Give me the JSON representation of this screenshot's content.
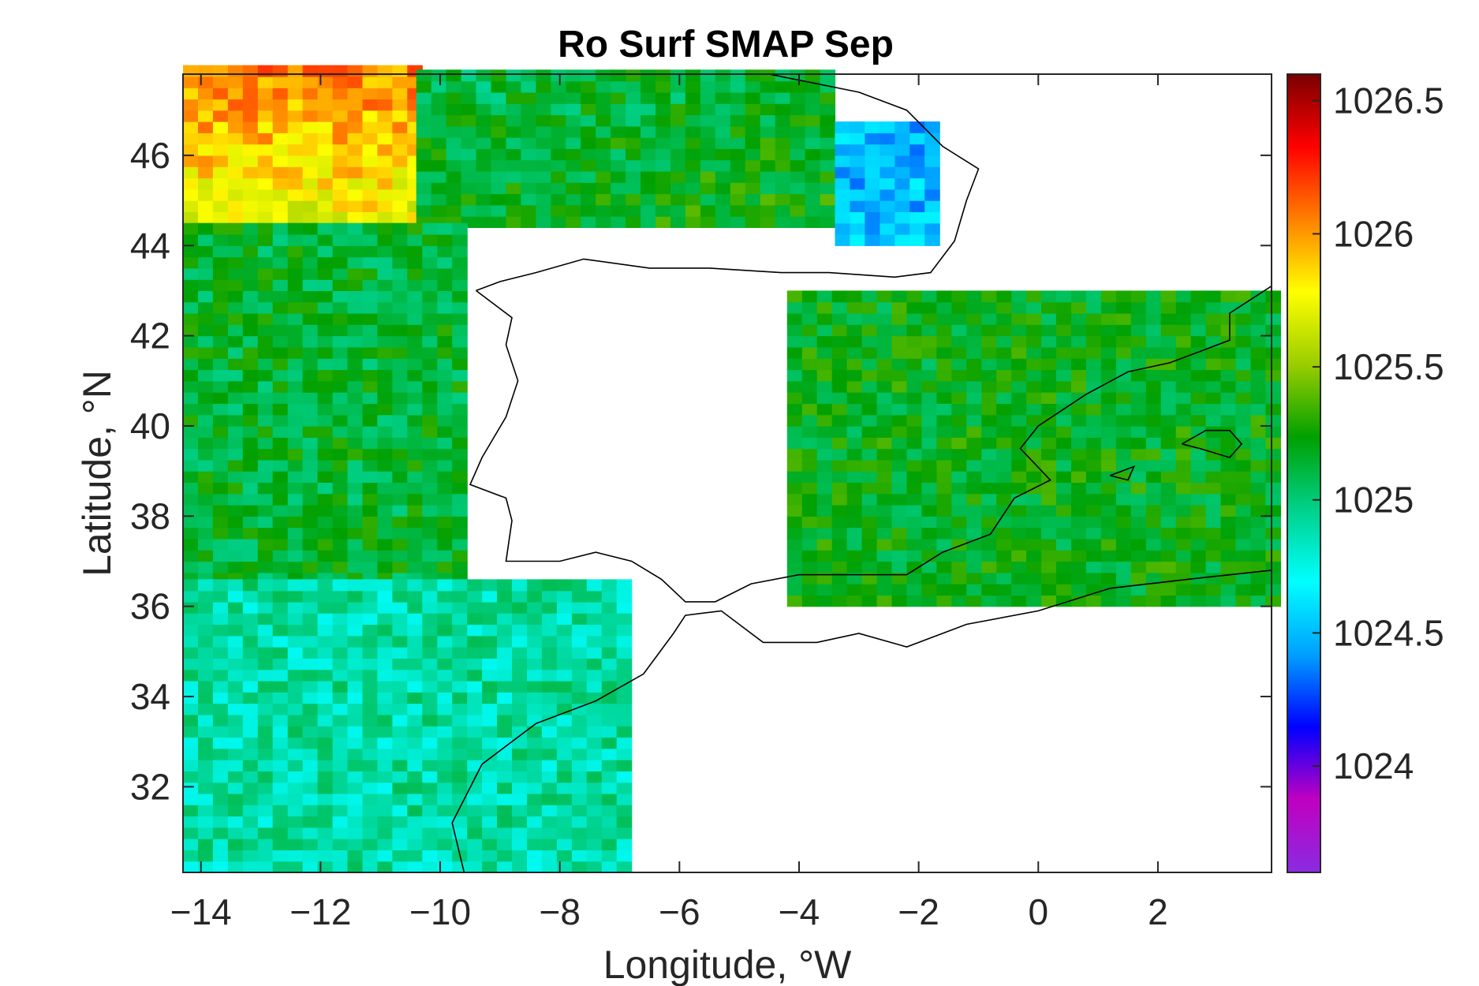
{
  "chart_data": {
    "type": "heatmap",
    "title": "Ro Surf SMAP Sep",
    "xlabel": "Longitude, °W",
    "ylabel": "Latitude, °N",
    "xlim": [
      -14.3,
      3.9
    ],
    "ylim": [
      30.1,
      47.8
    ],
    "xticks": [
      -14,
      -12,
      -10,
      -8,
      -6,
      -4,
      -2,
      0,
      2
    ],
    "yticks": [
      32,
      34,
      36,
      38,
      40,
      42,
      44,
      46
    ],
    "colorbar": {
      "min": 1023.6,
      "max": 1026.6,
      "ticks": [
        1024,
        1024.5,
        1025,
        1025.5,
        1026,
        1026.5
      ],
      "colormap": [
        "#8a2be2",
        "#c000c0",
        "#0000ff",
        "#00a0ff",
        "#00ffff",
        "#00d18a",
        "#00a000",
        "#9acd00",
        "#ffff00",
        "#ff8000",
        "#ff0000",
        "#7a0000"
      ]
    },
    "grid": false,
    "legend": "none",
    "land_color": "#ffffff",
    "coastline_color": "#000000",
    "regions": [
      {
        "name": "",
        "lon": [
          -14.3,
          -10.4
        ],
        "lat": [
          44.0,
          47.8
        ],
        "base": 1025.7,
        "gradient": [
          0.35,
          0.0
        ]
      },
      {
        "name": "",
        "lon": [
          -10.4,
          -3.4
        ],
        "lat": [
          44.4,
          47.8
        ],
        "base": 1025.2,
        "gradient": [
          -0.1,
          0.05
        ]
      },
      {
        "name": "",
        "lon": [
          -3.4,
          -1.8
        ],
        "lat": [
          44.0,
          46.6
        ],
        "base": 1024.5,
        "gradient": [
          0.0,
          0.0
        ]
      },
      {
        "name": "",
        "lon": [
          -14.3,
          -9.6
        ],
        "lat": [
          36.0,
          44.4
        ],
        "base": 1025.15,
        "gradient": [
          0.0,
          0.0
        ]
      },
      {
        "name": "",
        "lon": [
          -14.3,
          -7.0
        ],
        "lat": [
          30.1,
          36.6
        ],
        "base": 1024.9,
        "gradient": [
          0.0,
          0.0
        ]
      },
      {
        "name": "",
        "lon": [
          -4.2,
          3.9
        ],
        "lat": [
          36.0,
          42.8
        ],
        "base": 1025.2,
        "gradient": [
          0.0,
          0.0
        ]
      }
    ]
  }
}
